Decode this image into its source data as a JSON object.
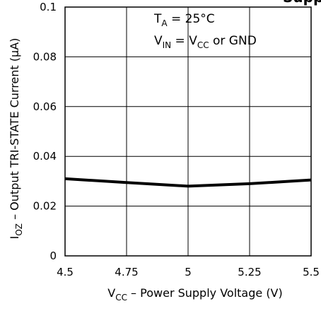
{
  "chart_data": {
    "type": "line",
    "title": "Supply",
    "xlabel": {
      "main": "V",
      "sub": "CC",
      "rest": " – Power Supply Voltage (V)"
    },
    "ylabel": {
      "main": "I",
      "sub": "OZ",
      "rest": " – Output TRI-STATE Current (μA)"
    },
    "xlim": [
      4.5,
      5.5
    ],
    "ylim": [
      0,
      0.1
    ],
    "xticks": [
      4.5,
      4.75,
      5,
      5.25,
      5.5
    ],
    "xtick_labels": [
      "4.5",
      "4.75",
      "5",
      "5.25",
      "5.5"
    ],
    "yticks": [
      0,
      0.02,
      0.04,
      0.06,
      0.08,
      0.1
    ],
    "ytick_labels": [
      "0",
      "0.02",
      "0.04",
      "0.06",
      "0.08",
      "0.1"
    ],
    "grid": true,
    "annotations": [
      {
        "main": "T",
        "sub": "A",
        "rest": " = 25°C"
      },
      {
        "main": "V",
        "sub": "IN",
        "rest": " = V",
        "sub2": "CC",
        "rest2": " or GND"
      }
    ],
    "series": [
      {
        "x": [
          4.5,
          4.75,
          5,
          5.25,
          5.5
        ],
        "y": [
          0.031,
          0.0295,
          0.028,
          0.029,
          0.0305
        ]
      }
    ]
  }
}
